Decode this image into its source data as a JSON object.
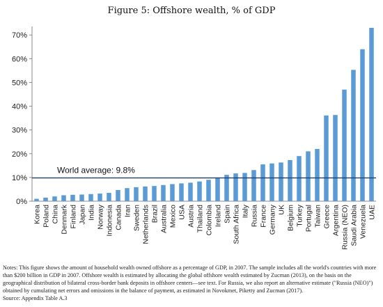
{
  "chart_data": {
    "type": "bar",
    "title": "Figure 5: Offshore wealth, % of GDP",
    "categories": [
      "Korea",
      "Poland",
      "China",
      "Denmark",
      "Finland",
      "Japan",
      "India",
      "Norway",
      "Indonesia",
      "Canada",
      "Iran",
      "Sweden",
      "Netherlands",
      "Brazil",
      "Australia",
      "Mexico",
      "USA",
      "Austria",
      "Thailand",
      "Colombia",
      "Ireland",
      "Spain",
      "South Africa",
      "Italy",
      "Russia",
      "France",
      "Germany",
      "UK",
      "Belgium",
      "Turkey",
      "Portugal",
      "Taiwan",
      "Greece",
      "Argentina",
      "Russia (NEO)",
      "Saudi Arabia",
      "Venezuela",
      "UAE"
    ],
    "series": [
      {
        "values": [
          1.0,
          1.5,
          2.0,
          2.5,
          2.7,
          2.8,
          3.0,
          3.2,
          3.5,
          4.7,
          5.5,
          5.9,
          6.2,
          6.4,
          6.8,
          7.2,
          7.5,
          7.8,
          8.3,
          9.0,
          10.0,
          11.1,
          11.7,
          11.9,
          13.1,
          15.5,
          15.9,
          16.3,
          17.3,
          19.0,
          21.0,
          22.0,
          36.1,
          36.3,
          47.0,
          55.3,
          64.0,
          73.0
        ],
        "color": "#5b9bd5"
      }
    ],
    "ylim": [
      0,
      73
    ],
    "yticks": [
      "0%",
      "10%",
      "20%",
      "30%",
      "40%",
      "50%",
      "60%",
      "70%"
    ],
    "ytick_values": [
      0,
      10,
      20,
      30,
      40,
      50,
      60,
      70
    ],
    "grid": false,
    "reference_line": {
      "value": 9.8,
      "label": "World average: 9.8%",
      "color": "#1f3f6e"
    }
  },
  "notes": {
    "line1": "Notes: This figure shows the amount of household wealth owned offshore as a percentage of GDP, in 2007. The sample includes all the world's countries with more than $200 billion in GDP in 2007. Offshore wealth is estimated by allocating the global offshore wealth estimated by Zucman (2013), on the basis on the geographical distribution of bilateral cross-border bank deposits in offshore centers—see text. For Russia, we also report an alternative estimate (\"Russia (NEO)\") obtained by cumulating net errors and omissions in the balance of payment, as estimated in Novokmet, Piketty and Zucman (2017).",
    "line2": "Source: Appendix Table A.3"
  }
}
